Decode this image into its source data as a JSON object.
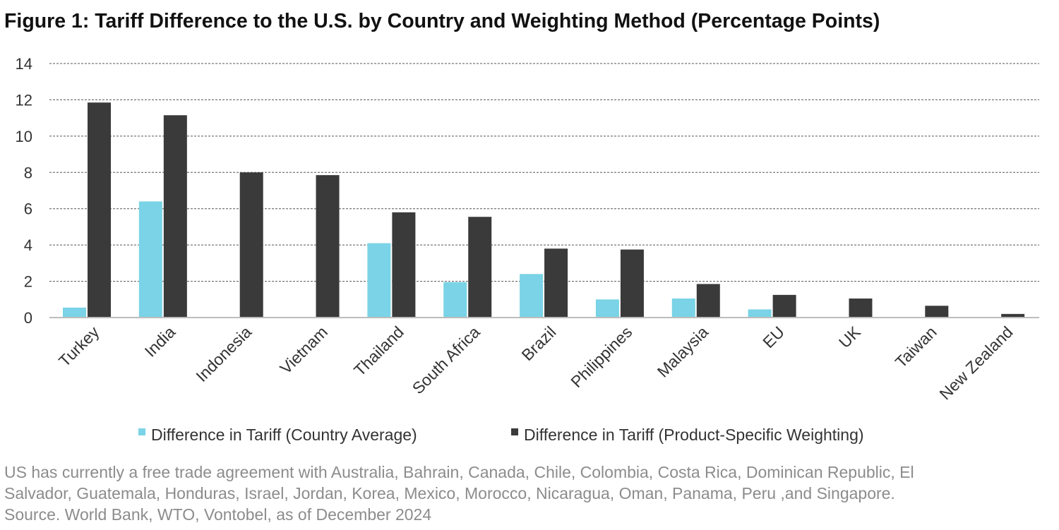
{
  "chart_data": {
    "type": "bar",
    "title": "Figure 1: Tariff Difference to the U.S. by Country and Weighting Method (Percentage Points)",
    "xlabel": "",
    "ylabel": "",
    "ylim": [
      0,
      14
    ],
    "yticks": [
      "0",
      "2",
      "4",
      "6",
      "8",
      "10",
      "12",
      "14"
    ],
    "grid": true,
    "legend_position": "bottom",
    "categories": [
      "Turkey",
      "India",
      "Indonesia",
      "Vietnam",
      "Thailand",
      "South Africa",
      "Brazil",
      "Philippines",
      "Malaysia",
      "EU",
      "UK",
      "Taiwan",
      "New Zealand"
    ],
    "series": [
      {
        "name": "Difference in Tariff (Country Average)",
        "color": "#7ad3e6",
        "values": [
          0.55,
          6.4,
          0,
          0,
          4.1,
          1.95,
          2.4,
          1.0,
          1.05,
          0.45,
          0,
          0,
          0
        ]
      },
      {
        "name": "Difference in Tariff (Product-Specific Weighting)",
        "color": "#3a3a3a",
        "values": [
          11.85,
          11.15,
          8.0,
          7.85,
          5.8,
          5.55,
          3.8,
          3.75,
          1.85,
          1.25,
          1.05,
          0.65,
          0.2
        ]
      }
    ]
  },
  "notes": [
    "US has currently a free trade agreement with Australia, Bahrain, Canada, Chile, Colombia, Costa Rica, Dominican Republic, El",
    "Salvador, Guatemala, Honduras, Israel, Jordan, Korea, Mexico, Morocco, Nicaragua, Oman, Panama, Peru ,and Singapore.",
    "Source. World Bank, WTO, Vontobel, as of December 2024"
  ]
}
